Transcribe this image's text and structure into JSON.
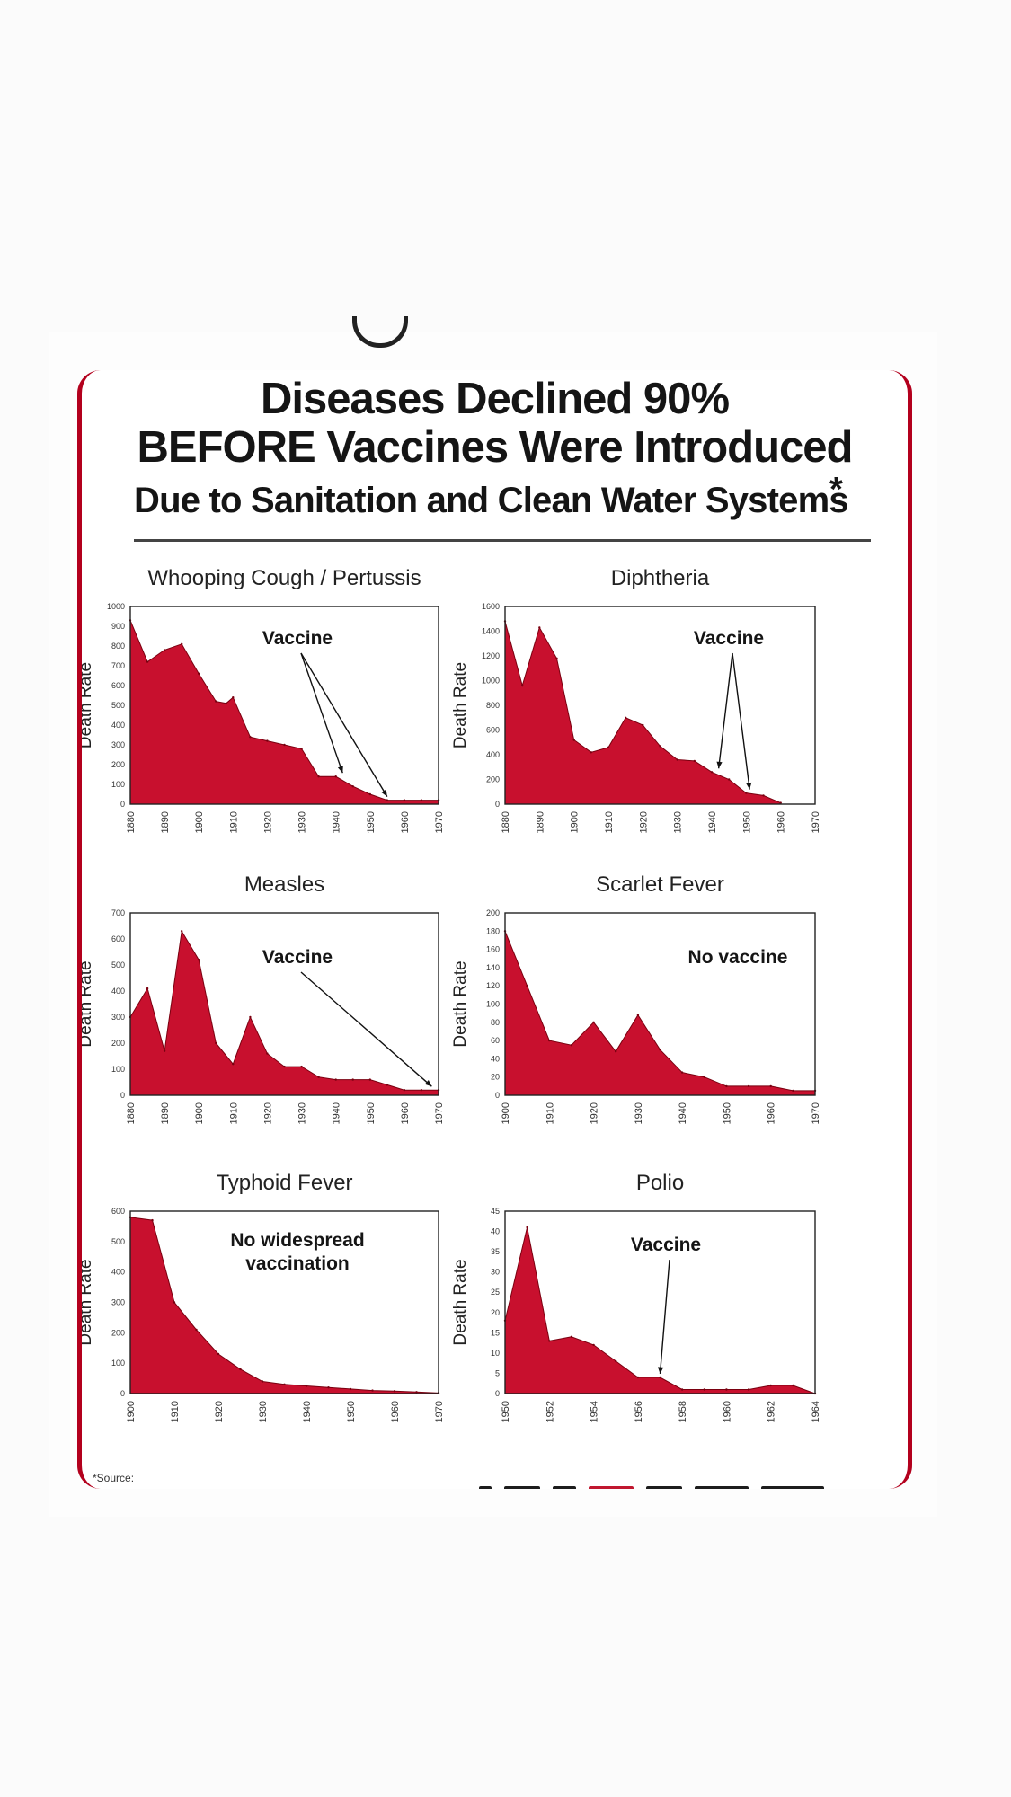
{
  "infographic": {
    "title_line1": "Diseases Declined 90%",
    "title_line2": "BEFORE Vaccines Were Introduced",
    "subtitle": "Due to Sanitation and Clean Water Systems",
    "asterisk": "*",
    "footer_source": "*Source:",
    "accent_color": "#b3001d",
    "fill_color": "#c8102e"
  },
  "chart_data": [
    {
      "type": "area",
      "title": "Whooping Cough / Pertussis",
      "ylabel": "Death Rate",
      "annotation": "Vaccine",
      "x": [
        1880,
        1885,
        1890,
        1895,
        1900,
        1905,
        1908,
        1910,
        1915,
        1920,
        1925,
        1930,
        1935,
        1940,
        1945,
        1950,
        1955,
        1960,
        1965,
        1970
      ],
      "values": [
        930,
        720,
        780,
        810,
        660,
        520,
        510,
        540,
        340,
        320,
        300,
        280,
        140,
        140,
        90,
        50,
        20,
        20,
        20,
        20
      ],
      "ylim": [
        0,
        1000
      ],
      "yticks": [
        0,
        100,
        200,
        300,
        400,
        500,
        600,
        700,
        800,
        900,
        1000
      ],
      "xticks": [
        1880,
        1890,
        1900,
        1910,
        1920,
        1930,
        1940,
        1950,
        1960,
        1970
      ],
      "arrow_targets": [
        1942,
        1955
      ]
    },
    {
      "type": "area",
      "title": "Diphtheria",
      "ylabel": "Death Rate",
      "annotation": "Vaccine",
      "x": [
        1880,
        1885,
        1890,
        1895,
        1900,
        1905,
        1910,
        1915,
        1920,
        1925,
        1930,
        1935,
        1940,
        1945,
        1950,
        1955,
        1960
      ],
      "values": [
        1480,
        960,
        1430,
        1180,
        520,
        420,
        460,
        700,
        640,
        470,
        360,
        350,
        260,
        200,
        90,
        70,
        10
      ],
      "ylim": [
        0,
        1600
      ],
      "yticks": [
        0,
        200,
        400,
        600,
        800,
        1000,
        1200,
        1400,
        1600
      ],
      "xticks": [
        1880,
        1890,
        1900,
        1910,
        1920,
        1930,
        1940,
        1950,
        1960,
        1970
      ],
      "arrow_targets": [
        1942,
        1951
      ]
    },
    {
      "type": "area",
      "title": "Measles",
      "ylabel": "Death Rate",
      "annotation": "Vaccine",
      "x": [
        1880,
        1885,
        1890,
        1895,
        1900,
        1905,
        1910,
        1915,
        1920,
        1925,
        1930,
        1935,
        1940,
        1945,
        1950,
        1955,
        1960,
        1965,
        1970
      ],
      "values": [
        300,
        410,
        170,
        630,
        520,
        200,
        120,
        300,
        160,
        110,
        110,
        70,
        60,
        60,
        60,
        40,
        20,
        20,
        20
      ],
      "ylim": [
        0,
        700
      ],
      "yticks": [
        0,
        100,
        200,
        300,
        400,
        500,
        600,
        700
      ],
      "xticks": [
        1880,
        1890,
        1900,
        1910,
        1920,
        1930,
        1940,
        1950,
        1960,
        1970
      ],
      "arrow_targets": [
        1968
      ]
    },
    {
      "type": "area",
      "title": "Scarlet Fever",
      "ylabel": "Death Rate",
      "annotation": "No vaccine",
      "x": [
        1900,
        1905,
        1910,
        1915,
        1920,
        1925,
        1930,
        1935,
        1940,
        1945,
        1950,
        1955,
        1960,
        1965,
        1970
      ],
      "values": [
        180,
        120,
        60,
        55,
        80,
        48,
        88,
        50,
        25,
        20,
        10,
        10,
        10,
        5,
        5
      ],
      "ylim": [
        0,
        200
      ],
      "yticks": [
        0,
        20,
        40,
        60,
        80,
        100,
        120,
        140,
        160,
        180,
        200
      ],
      "xticks": [
        1900,
        1910,
        1920,
        1930,
        1940,
        1950,
        1960,
        1970
      ],
      "arrow_targets": []
    },
    {
      "type": "area",
      "title": "Typhoid Fever",
      "ylabel": "Death Rate",
      "annotation": "No widespread vaccination",
      "x": [
        1900,
        1905,
        1910,
        1915,
        1920,
        1925,
        1930,
        1935,
        1940,
        1945,
        1950,
        1955,
        1960,
        1965,
        1970
      ],
      "values": [
        580,
        570,
        300,
        210,
        130,
        80,
        40,
        30,
        25,
        20,
        15,
        10,
        8,
        5,
        2
      ],
      "ylim": [
        0,
        600
      ],
      "yticks": [
        0,
        100,
        200,
        300,
        400,
        500,
        600
      ],
      "xticks": [
        1900,
        1910,
        1920,
        1930,
        1940,
        1950,
        1960,
        1970
      ],
      "arrow_targets": []
    },
    {
      "type": "area",
      "title": "Polio",
      "ylabel": "Death Rate",
      "annotation": "Vaccine",
      "x": [
        1950,
        1951,
        1952,
        1953,
        1954,
        1955,
        1956,
        1957,
        1958,
        1959,
        1960,
        1961,
        1962,
        1963,
        1964
      ],
      "values": [
        18,
        41,
        13,
        14,
        12,
        8,
        4,
        4,
        1,
        1,
        1,
        1,
        2,
        2,
        0
      ],
      "ylim": [
        0,
        45
      ],
      "yticks": [
        0,
        5,
        10,
        15,
        20,
        25,
        30,
        35,
        40,
        45
      ],
      "xticks": [
        1950,
        1952,
        1954,
        1956,
        1958,
        1960,
        1962,
        1964
      ],
      "arrow_targets": [
        1957
      ]
    }
  ]
}
